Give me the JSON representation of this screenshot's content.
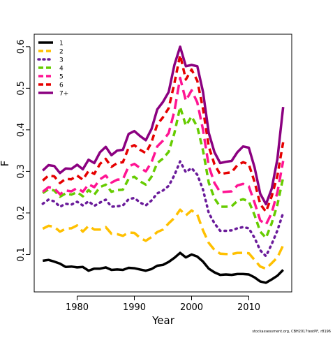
{
  "chart_data": {
    "type": "line",
    "xlabel": "Year",
    "ylabel": "F",
    "xlim": [
      1972.5,
      2017.5
    ],
    "ylim": [
      0.01,
      0.63
    ],
    "xticks": [
      1980,
      1990,
      2000,
      2010
    ],
    "yticks": [
      0.1,
      0.2,
      0.3,
      0.4,
      0.5,
      0.6
    ],
    "x_tick_labels": [
      "1980",
      "1990",
      "2000",
      "2010"
    ],
    "y_tick_labels": [
      "0.1",
      "0.2",
      "0.3",
      "0.4",
      "0.5",
      "0.6"
    ],
    "grid": false,
    "legend_position": "top-left",
    "x": [
      1974,
      1975,
      1976,
      1977,
      1978,
      1979,
      1980,
      1981,
      1982,
      1983,
      1984,
      1985,
      1986,
      1987,
      1988,
      1989,
      1990,
      1991,
      1992,
      1993,
      1994,
      1995,
      1996,
      1997,
      1998,
      1999,
      2000,
      2001,
      2002,
      2003,
      2004,
      2005,
      2006,
      2007,
      2008,
      2009,
      2010,
      2011,
      2012,
      2013,
      2014,
      2015,
      2016
    ],
    "series": [
      {
        "name": "1",
        "color": "#000000",
        "dash": "solid",
        "values": [
          0.085,
          0.087,
          0.083,
          0.078,
          0.07,
          0.071,
          0.069,
          0.07,
          0.061,
          0.066,
          0.066,
          0.069,
          0.063,
          0.064,
          0.063,
          0.068,
          0.067,
          0.064,
          0.061,
          0.065,
          0.073,
          0.075,
          0.082,
          0.092,
          0.104,
          0.093,
          0.1,
          0.095,
          0.083,
          0.066,
          0.057,
          0.051,
          0.052,
          0.051,
          0.053,
          0.053,
          0.052,
          0.045,
          0.035,
          0.032,
          0.04,
          0.049,
          0.063
        ]
      },
      {
        "name": "2",
        "color": "#FFC000",
        "dash": "long",
        "values": [
          0.162,
          0.169,
          0.167,
          0.155,
          0.162,
          0.163,
          0.17,
          0.155,
          0.169,
          0.16,
          0.16,
          0.166,
          0.15,
          0.149,
          0.145,
          0.153,
          0.152,
          0.14,
          0.133,
          0.142,
          0.154,
          0.16,
          0.175,
          0.188,
          0.208,
          0.194,
          0.206,
          0.196,
          0.158,
          0.128,
          0.111,
          0.102,
          0.101,
          0.101,
          0.104,
          0.104,
          0.103,
          0.087,
          0.071,
          0.066,
          0.079,
          0.093,
          0.122
        ]
      },
      {
        "name": "3",
        "color": "#6A1B9A",
        "dash": "dotted",
        "values": [
          0.222,
          0.232,
          0.228,
          0.215,
          0.222,
          0.22,
          0.227,
          0.218,
          0.228,
          0.217,
          0.225,
          0.232,
          0.215,
          0.216,
          0.218,
          0.233,
          0.236,
          0.225,
          0.218,
          0.23,
          0.247,
          0.254,
          0.265,
          0.291,
          0.324,
          0.298,
          0.308,
          0.292,
          0.256,
          0.2,
          0.175,
          0.157,
          0.157,
          0.158,
          0.163,
          0.166,
          0.163,
          0.14,
          0.11,
          0.096,
          0.125,
          0.158,
          0.2
        ]
      },
      {
        "name": "4",
        "color": "#66CC00",
        "dash": "dash",
        "values": [
          0.248,
          0.257,
          0.254,
          0.239,
          0.247,
          0.244,
          0.25,
          0.24,
          0.255,
          0.244,
          0.262,
          0.268,
          0.251,
          0.255,
          0.256,
          0.282,
          0.287,
          0.276,
          0.268,
          0.287,
          0.32,
          0.331,
          0.347,
          0.392,
          0.455,
          0.41,
          0.432,
          0.407,
          0.35,
          0.273,
          0.235,
          0.215,
          0.215,
          0.216,
          0.229,
          0.233,
          0.228,
          0.195,
          0.155,
          0.14,
          0.175,
          0.22,
          0.285
        ]
      },
      {
        "name": "5",
        "color": "#FF1493",
        "dash": "long",
        "values": [
          0.251,
          0.262,
          0.259,
          0.245,
          0.254,
          0.252,
          0.26,
          0.251,
          0.269,
          0.262,
          0.281,
          0.29,
          0.273,
          0.28,
          0.281,
          0.312,
          0.318,
          0.308,
          0.3,
          0.322,
          0.36,
          0.374,
          0.392,
          0.445,
          0.525,
          0.47,
          0.495,
          0.466,
          0.4,
          0.313,
          0.272,
          0.25,
          0.251,
          0.252,
          0.266,
          0.27,
          0.264,
          0.225,
          0.182,
          0.172,
          0.2,
          0.25,
          0.325
        ]
      },
      {
        "name": "6",
        "color": "#E60000",
        "dash": "dash",
        "values": [
          0.278,
          0.29,
          0.288,
          0.272,
          0.282,
          0.281,
          0.29,
          0.28,
          0.301,
          0.294,
          0.318,
          0.33,
          0.311,
          0.32,
          0.322,
          0.357,
          0.363,
          0.352,
          0.344,
          0.37,
          0.413,
          0.43,
          0.452,
          0.512,
          0.58,
          0.521,
          0.545,
          0.518,
          0.45,
          0.36,
          0.317,
          0.293,
          0.296,
          0.298,
          0.315,
          0.322,
          0.317,
          0.275,
          0.221,
          0.203,
          0.24,
          0.29,
          0.37
        ]
      },
      {
        "name": "7+",
        "color": "#8B0080",
        "dash": "solid",
        "values": [
          0.302,
          0.315,
          0.313,
          0.296,
          0.307,
          0.306,
          0.316,
          0.305,
          0.328,
          0.32,
          0.346,
          0.359,
          0.339,
          0.35,
          0.352,
          0.39,
          0.397,
          0.385,
          0.375,
          0.402,
          0.449,
          0.467,
          0.491,
          0.556,
          0.6,
          0.553,
          0.556,
          0.553,
          0.491,
          0.393,
          0.346,
          0.32,
          0.323,
          0.325,
          0.346,
          0.36,
          0.357,
          0.31,
          0.246,
          0.221,
          0.258,
          0.33,
          0.455
        ]
      }
    ]
  },
  "footnote": "stockassessment.org, CBH2017testPF, r8196"
}
